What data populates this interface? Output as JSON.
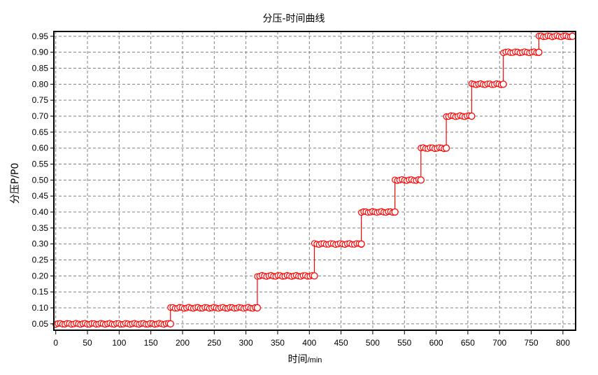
{
  "chart_data": {
    "type": "line",
    "title": "分压-时间曲线",
    "xlabel": "时间",
    "xlabel_unit": "/min",
    "ylabel": "分压P/P0",
    "xlim": [
      -3,
      820
    ],
    "ylim": [
      0.03,
      0.965
    ],
    "x_ticks": [
      0,
      50,
      100,
      150,
      200,
      250,
      300,
      350,
      400,
      450,
      500,
      550,
      600,
      650,
      700,
      750,
      800
    ],
    "y_ticks": [
      0.05,
      0.1,
      0.15,
      0.2,
      0.25,
      0.3,
      0.35,
      0.4,
      0.45,
      0.5,
      0.55,
      0.6,
      0.65,
      0.7,
      0.75,
      0.8,
      0.85,
      0.9,
      0.95
    ],
    "grid": true,
    "marker": "circle",
    "colors": {
      "series": "#ff0000",
      "grid": "#808080",
      "axis": "#000000"
    },
    "steps": [
      {
        "x_start": 0,
        "x_end": 181,
        "y": 0.05
      },
      {
        "x_start": 181,
        "x_end": 318,
        "y": 0.1
      },
      {
        "x_start": 318,
        "x_end": 408,
        "y": 0.2
      },
      {
        "x_start": 408,
        "x_end": 482,
        "y": 0.3
      },
      {
        "x_start": 482,
        "x_end": 535,
        "y": 0.4
      },
      {
        "x_start": 535,
        "x_end": 576,
        "y": 0.5
      },
      {
        "x_start": 576,
        "x_end": 616,
        "y": 0.6
      },
      {
        "x_start": 616,
        "x_end": 656,
        "y": 0.7
      },
      {
        "x_start": 656,
        "x_end": 706,
        "y": 0.8
      },
      {
        "x_start": 706,
        "x_end": 762,
        "y": 0.9
      },
      {
        "x_start": 762,
        "x_end": 815,
        "y": 0.95
      }
    ]
  }
}
